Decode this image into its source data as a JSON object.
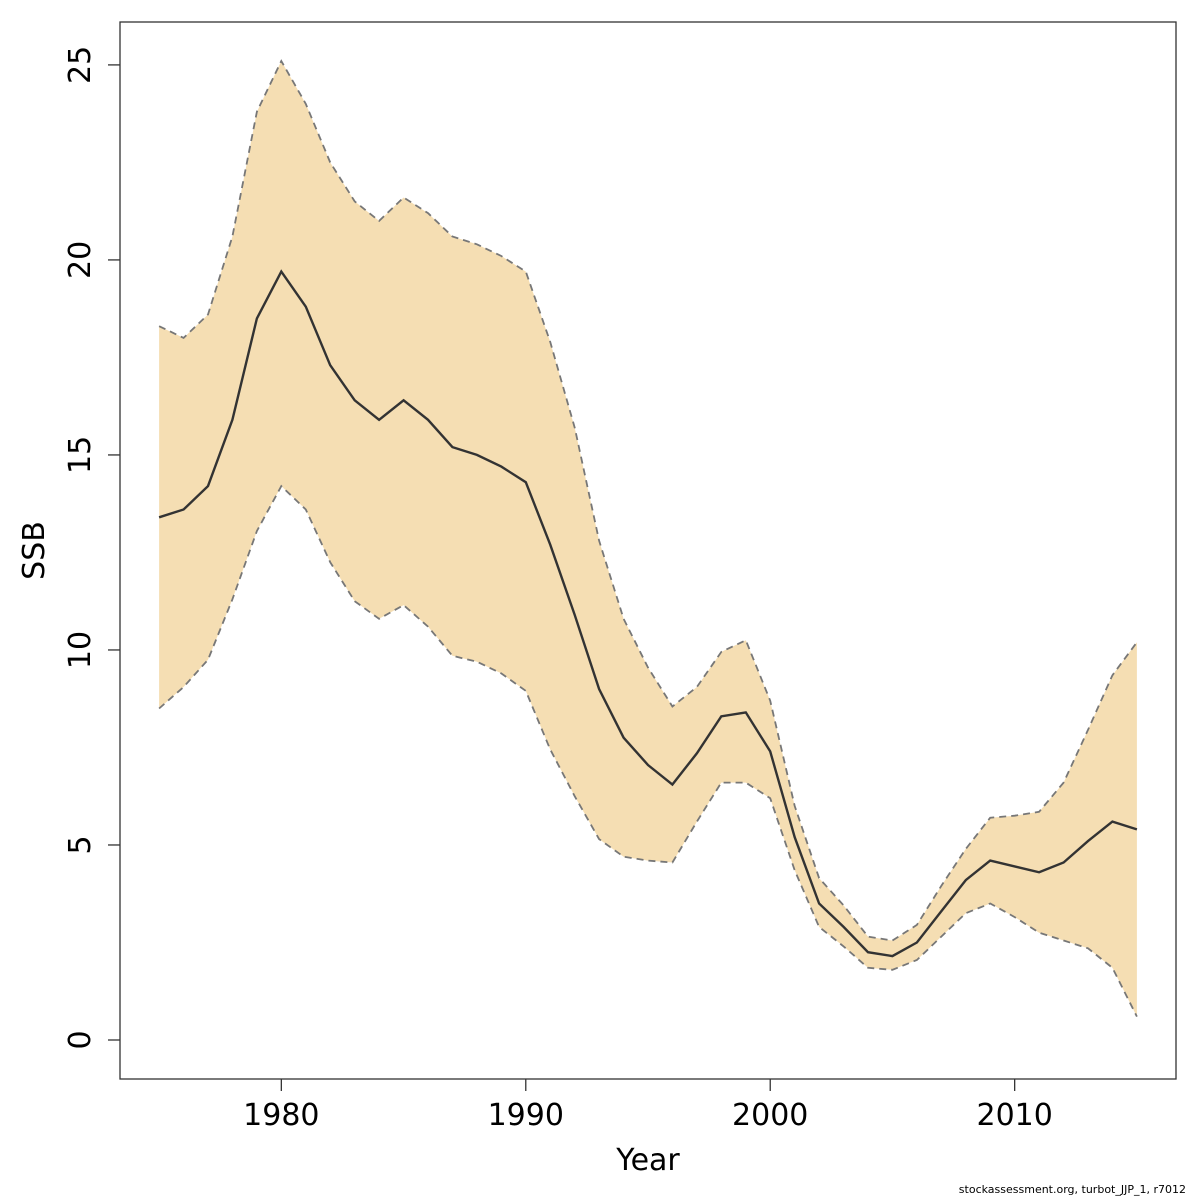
{
  "chart_data": {
    "type": "area",
    "xlabel": "Year",
    "ylabel": "SSB",
    "xlim": [
      1973.4,
      2016.6
    ],
    "ylim": [
      -1.0,
      26.1
    ],
    "x_ticks": [
      1980,
      1990,
      2000,
      2010
    ],
    "y_ticks": [
      0,
      5,
      10,
      15,
      20,
      25
    ],
    "grid": false,
    "colors": {
      "band": "#f5deb3",
      "band_edge": "#777777",
      "line": "#333333",
      "frame": "#333333"
    },
    "x": [
      1975,
      1976,
      1977,
      1978,
      1979,
      1980,
      1981,
      1982,
      1983,
      1984,
      1985,
      1986,
      1987,
      1988,
      1989,
      1990,
      1991,
      1992,
      1993,
      1994,
      1995,
      1996,
      1997,
      1998,
      1999,
      2000,
      2001,
      2002,
      2003,
      2004,
      2005,
      2006,
      2007,
      2008,
      2009,
      2010,
      2011,
      2012,
      2013,
      2014,
      2015
    ],
    "series": [
      {
        "values": [
          13.4,
          13.6,
          14.2,
          15.9,
          18.5,
          19.7,
          18.8,
          17.3,
          16.4,
          15.9,
          16.4,
          15.9,
          15.2,
          15.0,
          14.7,
          14.3,
          12.7,
          10.9,
          9.0,
          7.75,
          7.05,
          6.55,
          7.35,
          8.3,
          8.4,
          7.4,
          5.2,
          3.5,
          2.9,
          2.25,
          2.15,
          2.5,
          3.3,
          4.1,
          4.6,
          4.45,
          4.3,
          4.55,
          5.1,
          5.6,
          5.4
        ]
      },
      {
        "values": [
          18.3,
          18.0,
          18.6,
          20.6,
          23.8,
          25.1,
          24.0,
          22.5,
          21.5,
          21.0,
          21.6,
          21.2,
          20.6,
          20.4,
          20.1,
          19.7,
          17.9,
          15.7,
          12.8,
          10.8,
          9.55,
          8.55,
          9.05,
          9.95,
          10.25,
          8.7,
          6.0,
          4.15,
          3.45,
          2.65,
          2.55,
          2.95,
          3.95,
          4.9,
          5.7,
          5.75,
          5.85,
          6.6,
          7.95,
          9.35,
          10.2
        ]
      },
      {
        "values": [
          8.5,
          9.05,
          9.75,
          11.3,
          13.05,
          14.2,
          13.6,
          12.25,
          11.25,
          10.8,
          11.15,
          10.6,
          9.85,
          9.7,
          9.4,
          8.95,
          7.45,
          6.25,
          5.15,
          4.7,
          4.6,
          4.55,
          5.6,
          6.6,
          6.6,
          6.2,
          4.35,
          2.9,
          2.4,
          1.85,
          1.8,
          2.05,
          2.65,
          3.25,
          3.5,
          3.15,
          2.75,
          2.55,
          2.35,
          1.85,
          0.6
        ]
      }
    ]
  },
  "footer": {
    "credit": "stockassessment.org, turbot_JJP_1, r7012"
  }
}
